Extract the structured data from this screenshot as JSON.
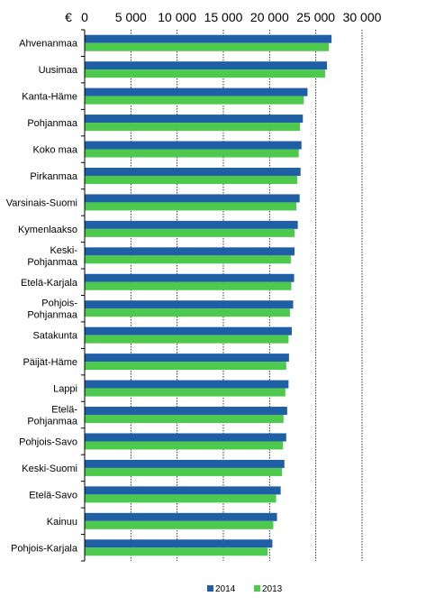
{
  "chart_data": {
    "type": "bar",
    "orientation": "horizontal",
    "unit_label": "€",
    "xlim": [
      0,
      30000
    ],
    "ticks": [
      {
        "value": 0,
        "label": "0"
      },
      {
        "value": 5000,
        "label": "5 000"
      },
      {
        "value": 10000,
        "label": "10 000"
      },
      {
        "value": 15000,
        "label": "15 000"
      },
      {
        "value": 20000,
        "label": "20 000"
      },
      {
        "value": 25000,
        "label": "25 000"
      },
      {
        "value": 30000,
        "label": "30 000"
      }
    ],
    "grid": "vertical gridlines",
    "legend_position": "bottom",
    "categories": [
      [
        "Ahvenanmaa"
      ],
      [
        "Uusimaa"
      ],
      [
        "Kanta-Häme"
      ],
      [
        "Pohjanmaa"
      ],
      [
        "Koko maa"
      ],
      [
        "Pirkanmaa"
      ],
      [
        "Varsinais-Suomi"
      ],
      [
        "Kymenlaakso"
      ],
      [
        "Keski-",
        "Pohjanmaa"
      ],
      [
        "Etelä-Karjala"
      ],
      [
        "Pohjois-",
        "Pohjanmaa"
      ],
      [
        "Satakunta"
      ],
      [
        "Päijät-Häme"
      ],
      [
        "Lappi"
      ],
      [
        "Etelä-",
        "Pohjanmaa"
      ],
      [
        "Pohjois-Savo"
      ],
      [
        "Keski-Suomi"
      ],
      [
        "Etelä-Savo"
      ],
      [
        "Kainuu"
      ],
      [
        "Pohjois-Karjala"
      ]
    ],
    "series": [
      {
        "name": "2014",
        "color": "#1f5fa6",
        "values": [
          26700,
          26200,
          24100,
          23600,
          23450,
          23350,
          23250,
          23050,
          22700,
          22650,
          22550,
          22400,
          22100,
          22050,
          21900,
          21800,
          21600,
          21200,
          20800,
          20300
        ]
      },
      {
        "name": "2013",
        "color": "#4dc94d",
        "values": [
          26400,
          26000,
          23700,
          23300,
          23150,
          23000,
          22900,
          22700,
          22300,
          22350,
          22200,
          22050,
          21800,
          21700,
          21500,
          21450,
          21350,
          20700,
          20400,
          19800
        ]
      }
    ]
  }
}
